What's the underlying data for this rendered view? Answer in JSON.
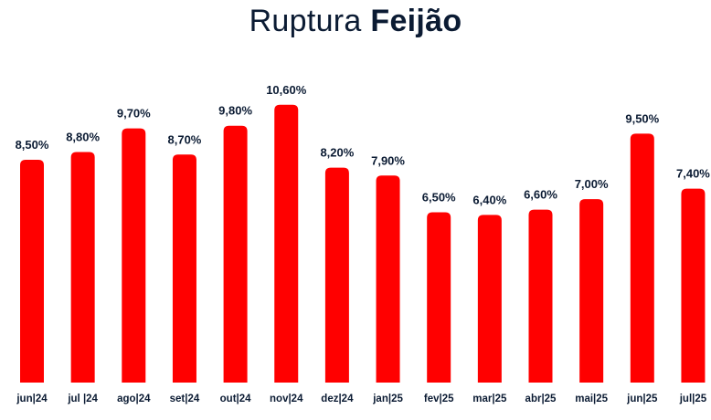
{
  "title": {
    "light": "Ruptura",
    "bold": "Feijão"
  },
  "colors": {
    "bar": "#ff0000",
    "text": "#0b1b33"
  },
  "chart_data": {
    "type": "bar",
    "title": "Ruptura Feijão",
    "categories": [
      "jun|24",
      "jul |24",
      "ago|24",
      "set|24",
      "out|24",
      "nov|24",
      "dez|24",
      "jan|25",
      "fev|25",
      "mar|25",
      "abr|25",
      "mai|25",
      "jun|25",
      "jul|25"
    ],
    "values": [
      8.5,
      8.8,
      9.7,
      8.7,
      9.8,
      10.6,
      8.2,
      7.9,
      6.5,
      6.4,
      6.6,
      7.0,
      9.5,
      7.4
    ],
    "labels": [
      "8,50%",
      "8,80%",
      "9,70%",
      "8,70%",
      "9,80%",
      "10,60%",
      "8,20%",
      "7,90%",
      "6,50%",
      "6,40%",
      "6,60%",
      "7,00%",
      "9,50%",
      "7,40%"
    ],
    "xlabel": "",
    "ylabel": "",
    "unit": "%",
    "grid": false,
    "legend": "none"
  }
}
